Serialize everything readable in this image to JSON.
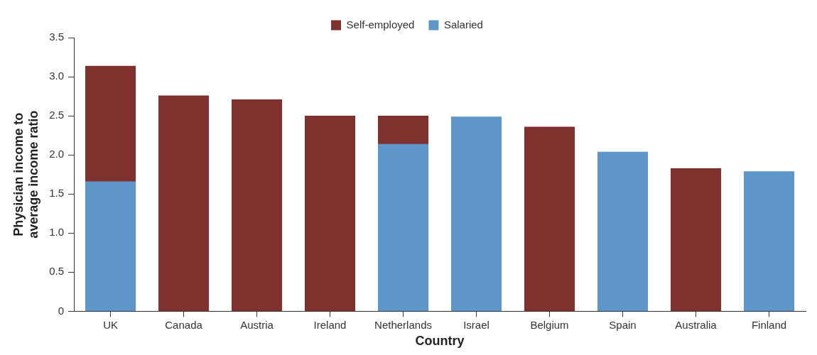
{
  "chart_data": {
    "type": "bar",
    "xlabel": "Country",
    "ylabel": "Physician income to average income ratio",
    "categories": [
      "UK",
      "Canada",
      "Austria",
      "Ireland",
      "Netherlands",
      "Israel",
      "Belgium",
      "Spain",
      "Australia",
      "Finland"
    ],
    "series": [
      {
        "name": "Self-employed",
        "color": "#7f312e",
        "values": [
          3.14,
          2.76,
          2.71,
          2.5,
          2.5,
          null,
          2.36,
          null,
          1.83,
          null
        ]
      },
      {
        "name": "Salaried",
        "color": "#5f96c9",
        "values": [
          1.66,
          null,
          null,
          null,
          2.14,
          2.49,
          null,
          2.04,
          null,
          1.79
        ]
      }
    ],
    "ylim": [
      0,
      3.5
    ],
    "yticks": [
      0,
      0.5,
      {
        "value": 1,
        "label": "1.0"
      },
      1.5,
      {
        "value": 2,
        "label": "2.0"
      },
      2.5,
      {
        "value": 3,
        "label": "3.0"
      },
      3.5
    ],
    "grid": false,
    "legend": "top"
  }
}
